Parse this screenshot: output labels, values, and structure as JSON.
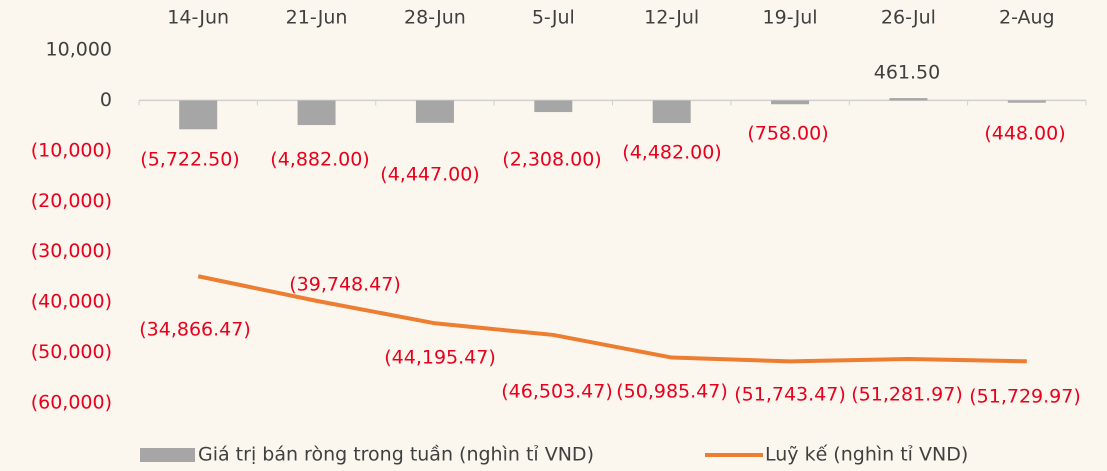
{
  "chart_data": {
    "type": "combo",
    "categories": [
      "14-Jun",
      "21-Jun",
      "28-Jun",
      "5-Jul",
      "12-Jul",
      "19-Jul",
      "26-Jul",
      "2-Aug"
    ],
    "ylim": [
      -60000,
      10000
    ],
    "yticks": [
      {
        "value": 10000,
        "label": "10,000"
      },
      0,
      {
        "value": -10000,
        "label": "(10,000)"
      },
      {
        "value": -20000,
        "label": "(20,000)"
      },
      {
        "value": -30000,
        "label": "(30,000)"
      },
      {
        "value": -40000,
        "label": "(40,000)"
      },
      {
        "value": -50000,
        "label": "(50,000)"
      },
      {
        "value": -60000,
        "label": "(60,000)"
      }
    ],
    "series": [
      {
        "name": "Giá trị bán ròng trong tuần (nghìn tỉ VND)",
        "type": "bar",
        "color": "#a6a6a6",
        "values": [
          -5722.5,
          -4882,
          -4447,
          -2308,
          -4482,
          -758,
          461.5,
          -448
        ],
        "value_labels": [
          "(5,722.50)",
          "(4,882.00)",
          "(4,447.00)",
          "(2,308.00)",
          "(4,482.00)",
          "(758.00)",
          "461.50",
          "(448.00)"
        ]
      },
      {
        "name": "Luỹ kế (nghìn tỉ VND)",
        "type": "line",
        "color": "#ed7d31",
        "values": [
          -34866.47,
          -39748.47,
          -44195.47,
          -46503.47,
          -50985.47,
          -51743.47,
          -51281.97,
          -51729.97
        ],
        "value_labels": [
          "(34,866.47)",
          "(39,748.47)",
          "(44,195.47)",
          "(46,503.47)",
          "(50,985.47)",
          "(51,743.47)",
          "(51,281.97)",
          "(51,729.97)"
        ]
      }
    ]
  }
}
